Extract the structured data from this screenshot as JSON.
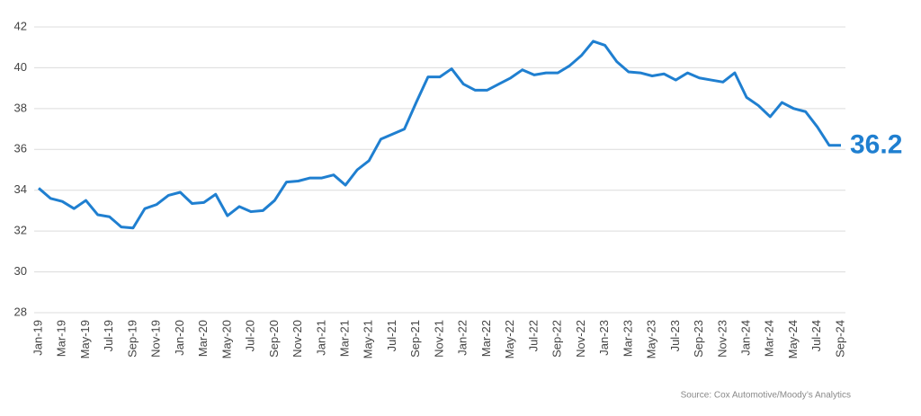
{
  "chart_data": {
    "type": "line",
    "source": "Source: Cox Automotive/Moody’s Analytics",
    "categories": [
      "Jan-19",
      null,
      "Mar-19",
      null,
      "May-19",
      null,
      "Jul-19",
      null,
      "Sep-19",
      null,
      "Nov-19",
      null,
      "Jan-20",
      null,
      "Mar-20",
      null,
      "May-20",
      null,
      "Jul-20",
      null,
      "Sep-20",
      null,
      "Nov-20",
      null,
      "Jan-21",
      null,
      "Mar-21",
      null,
      "May-21",
      null,
      "Jul-21",
      null,
      "Sep-21",
      null,
      "Nov-21",
      null,
      "Jan-22",
      null,
      "Mar-22",
      null,
      "May-22",
      null,
      "Jul-22",
      null,
      "Sep-22",
      null,
      "Nov-22",
      null,
      "Jan-23",
      null,
      "Mar-23",
      null,
      "May-23",
      null,
      "Jul-23",
      null,
      "Sep-23",
      null,
      "Nov-23",
      null,
      "Jan-24",
      null,
      "Mar-24",
      null,
      "May-24",
      null,
      "Jul-24",
      null,
      "Sep-24"
    ],
    "values": [
      34.1,
      33.6,
      33.45,
      33.1,
      33.5,
      32.8,
      32.7,
      32.2,
      32.15,
      33.1,
      33.3,
      33.75,
      33.9,
      33.35,
      33.4,
      33.8,
      32.75,
      33.2,
      32.95,
      33.0,
      33.5,
      34.4,
      34.45,
      34.6,
      34.6,
      34.75,
      34.25,
      35.0,
      35.45,
      36.5,
      36.75,
      37.0,
      38.3,
      39.55,
      39.55,
      39.95,
      39.2,
      38.9,
      38.9,
      39.2,
      39.5,
      39.9,
      39.65,
      39.75,
      39.75,
      40.1,
      40.6,
      41.3,
      41.1,
      40.3,
      39.8,
      39.75,
      39.6,
      39.7,
      39.4,
      39.75,
      39.5,
      39.4,
      39.3,
      39.75,
      38.55,
      38.15,
      37.6,
      38.3,
      38.0,
      37.85,
      37.1,
      36.2,
      36.2
    ],
    "color": "#1f7fd0",
    "ylim": [
      28,
      42
    ],
    "yticks": [
      28,
      30,
      32,
      34,
      36,
      38,
      40,
      42
    ],
    "grid": true
  }
}
